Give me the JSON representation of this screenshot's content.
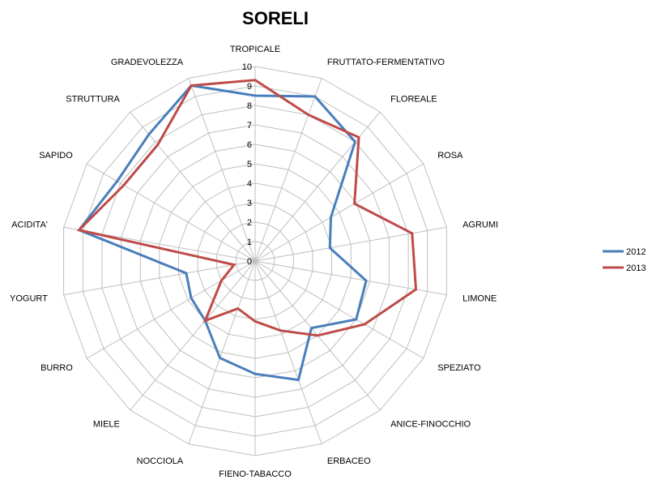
{
  "chart_data": {
    "type": "radar",
    "title": "SORELI",
    "categories": [
      "TROPICALE",
      "FRUTTATO-FERMENTATIVO",
      "FLOREALE",
      "ROSA",
      "AGRUMI",
      "LIMONE",
      "SPEZIATO",
      "ANICE-FINOCCHIO",
      "ERBACEO",
      "FIENO-TABACCO",
      "NOCCIOLA",
      "MIELE",
      "BURRO",
      "YOGURT",
      "ACIDITA'",
      "SAPIDO",
      "STRUTTURA",
      "GRADEVOLEZZA"
    ],
    "ticks": [
      0,
      1,
      2,
      3,
      4,
      5,
      6,
      7,
      8,
      9,
      10
    ],
    "rlim": [
      0,
      10
    ],
    "grid": true,
    "legend_position": "right",
    "series": [
      {
        "name": "2012",
        "color": "#4a7ebb",
        "values": [
          8.5,
          9.0,
          8.0,
          4.5,
          3.9,
          5.8,
          6.0,
          4.5,
          6.5,
          5.8,
          5.3,
          4.0,
          3.8,
          3.6,
          9.2,
          8.2,
          8.5,
          9.6
        ]
      },
      {
        "name": "2013",
        "color": "#be4b48",
        "values": [
          9.3,
          8.0,
          8.3,
          5.9,
          8.2,
          8.4,
          6.5,
          5.0,
          3.8,
          3.1,
          2.6,
          4.0,
          2.0,
          1.1,
          9.2,
          7.8,
          7.8,
          9.6
        ]
      }
    ]
  }
}
